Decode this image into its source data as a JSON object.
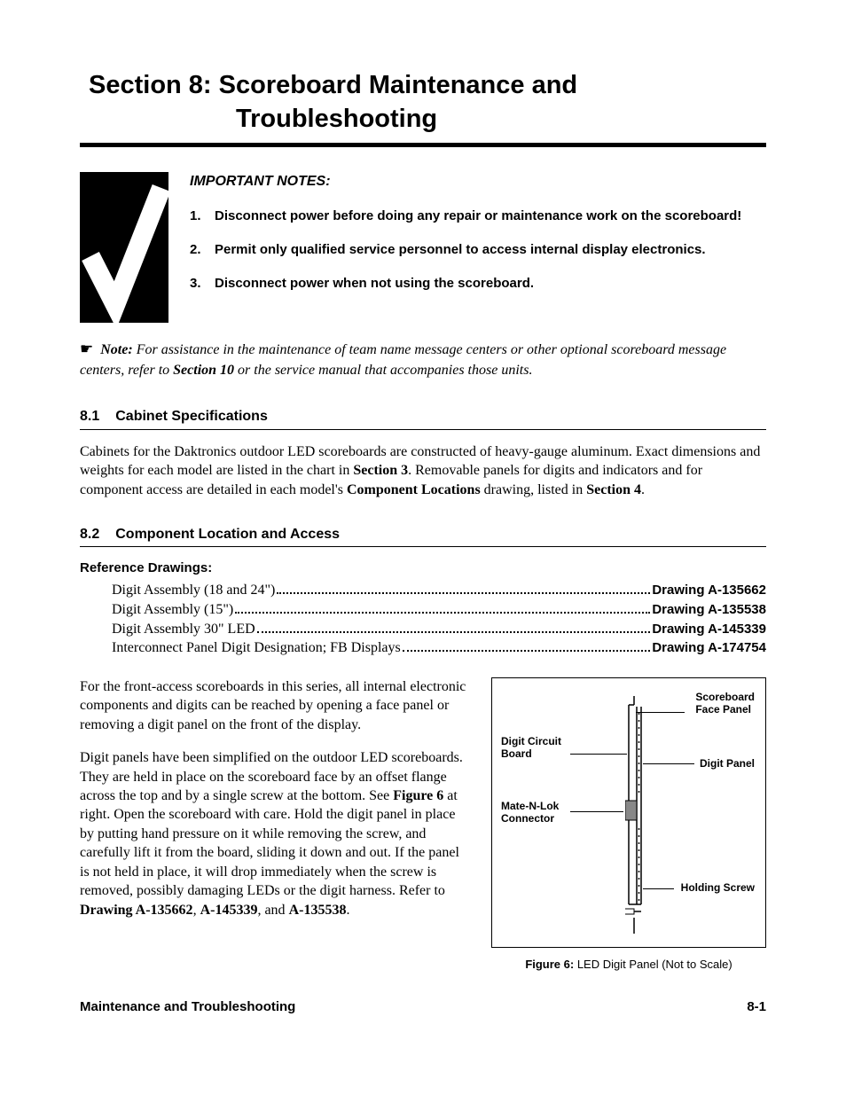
{
  "title_line1": "Section 8:  Scoreboard Maintenance and",
  "title_line2": "Troubleshooting",
  "notes_heading": "IMPORTANT NOTES:",
  "notes": [
    "Disconnect power before doing any repair or maintenance work on the scoreboard!",
    "Permit only qualified service personnel to access internal display electronics.",
    "Disconnect power when not using the scoreboard."
  ],
  "note_label": "Note:",
  "note_body_before": " For assistance in the maintenance of team name message centers or other optional scoreboard message centers, refer to ",
  "note_section_ref": "Section 10",
  "note_body_after": " or the service manual that accompanies those units.",
  "sub1_num": "8.1",
  "sub1_title": "Cabinet Specifications",
  "sub1_para_before": "Cabinets for the Daktronics outdoor LED scoreboards are constructed of heavy-gauge aluminum. Exact dimensions and weights for each model are listed in the chart in ",
  "sub1_sect3": "Section 3",
  "sub1_mid": ". Removable panels for digits and indicators and for component access are detailed in each model's ",
  "sub1_comploc": "Component Locations",
  "sub1_mid2": " drawing, listed in ",
  "sub1_sect4": "Section 4",
  "sub1_end": ".",
  "sub2_num": "8.2",
  "sub2_title": "Component Location and Access",
  "ref_heading": "Reference Drawings:",
  "refs": [
    {
      "label": "Digit Assembly (18 and 24\")",
      "drawing": "Drawing A-135662"
    },
    {
      "label": "Digit Assembly (15\")",
      "drawing": "Drawing A-135538"
    },
    {
      "label": "Digit Assembly 30\" LED",
      "drawing": "Drawing A-145339"
    },
    {
      "label": "Interconnect Panel Digit Designation; FB Displays",
      "drawing": "Drawing A-174754"
    }
  ],
  "left_p1": "For the front-access scoreboards in this series, all internal electronic components and digits can be reached by opening a face panel or removing a digit panel on the front of the display.",
  "left_p2_a": "Digit panels have been simplified on the outdoor LED scoreboards. They are held in place on the scoreboard face by an offset flange across the top and by a single screw at the bottom. See ",
  "left_p2_fig": "Figure 6",
  "left_p2_b": " at right. Open the scoreboard with care. Hold the digit panel in place by putting hand pressure on it while removing the screw, and carefully lift it from the board, sliding it down and out. If the panel is not held in place, it will drop immediately when the screw is removed, possibly damaging LEDs or the digit harness. Refer to ",
  "left_p2_d1": "Drawing A-135662",
  "left_p2_c": ", ",
  "left_p2_d2": "A-145339",
  "left_p2_d": ", and ",
  "left_p2_d3": "A-135538",
  "left_p2_e": ".",
  "fig_labels": {
    "face_panel": "Scoreboard\nFace Panel",
    "digit_board": "Digit Circuit\nBoard",
    "digit_panel": "Digit Panel",
    "connector": "Mate-N-Lok\nConnector",
    "screw": "Holding Screw"
  },
  "figure_caption_bold": "Figure 6:",
  "figure_caption_rest": " LED Digit Panel (Not to Scale)",
  "footer_left": "Maintenance and Troubleshooting",
  "footer_right": "8-1",
  "colors": {
    "text": "#000000",
    "bg": "#ffffff",
    "rule": "#000000"
  },
  "fonts": {
    "heading_family": "Arial",
    "body_family": "Times New Roman",
    "title_size_pt": 22,
    "subheading_size_pt": 12,
    "body_size_pt": 12
  }
}
